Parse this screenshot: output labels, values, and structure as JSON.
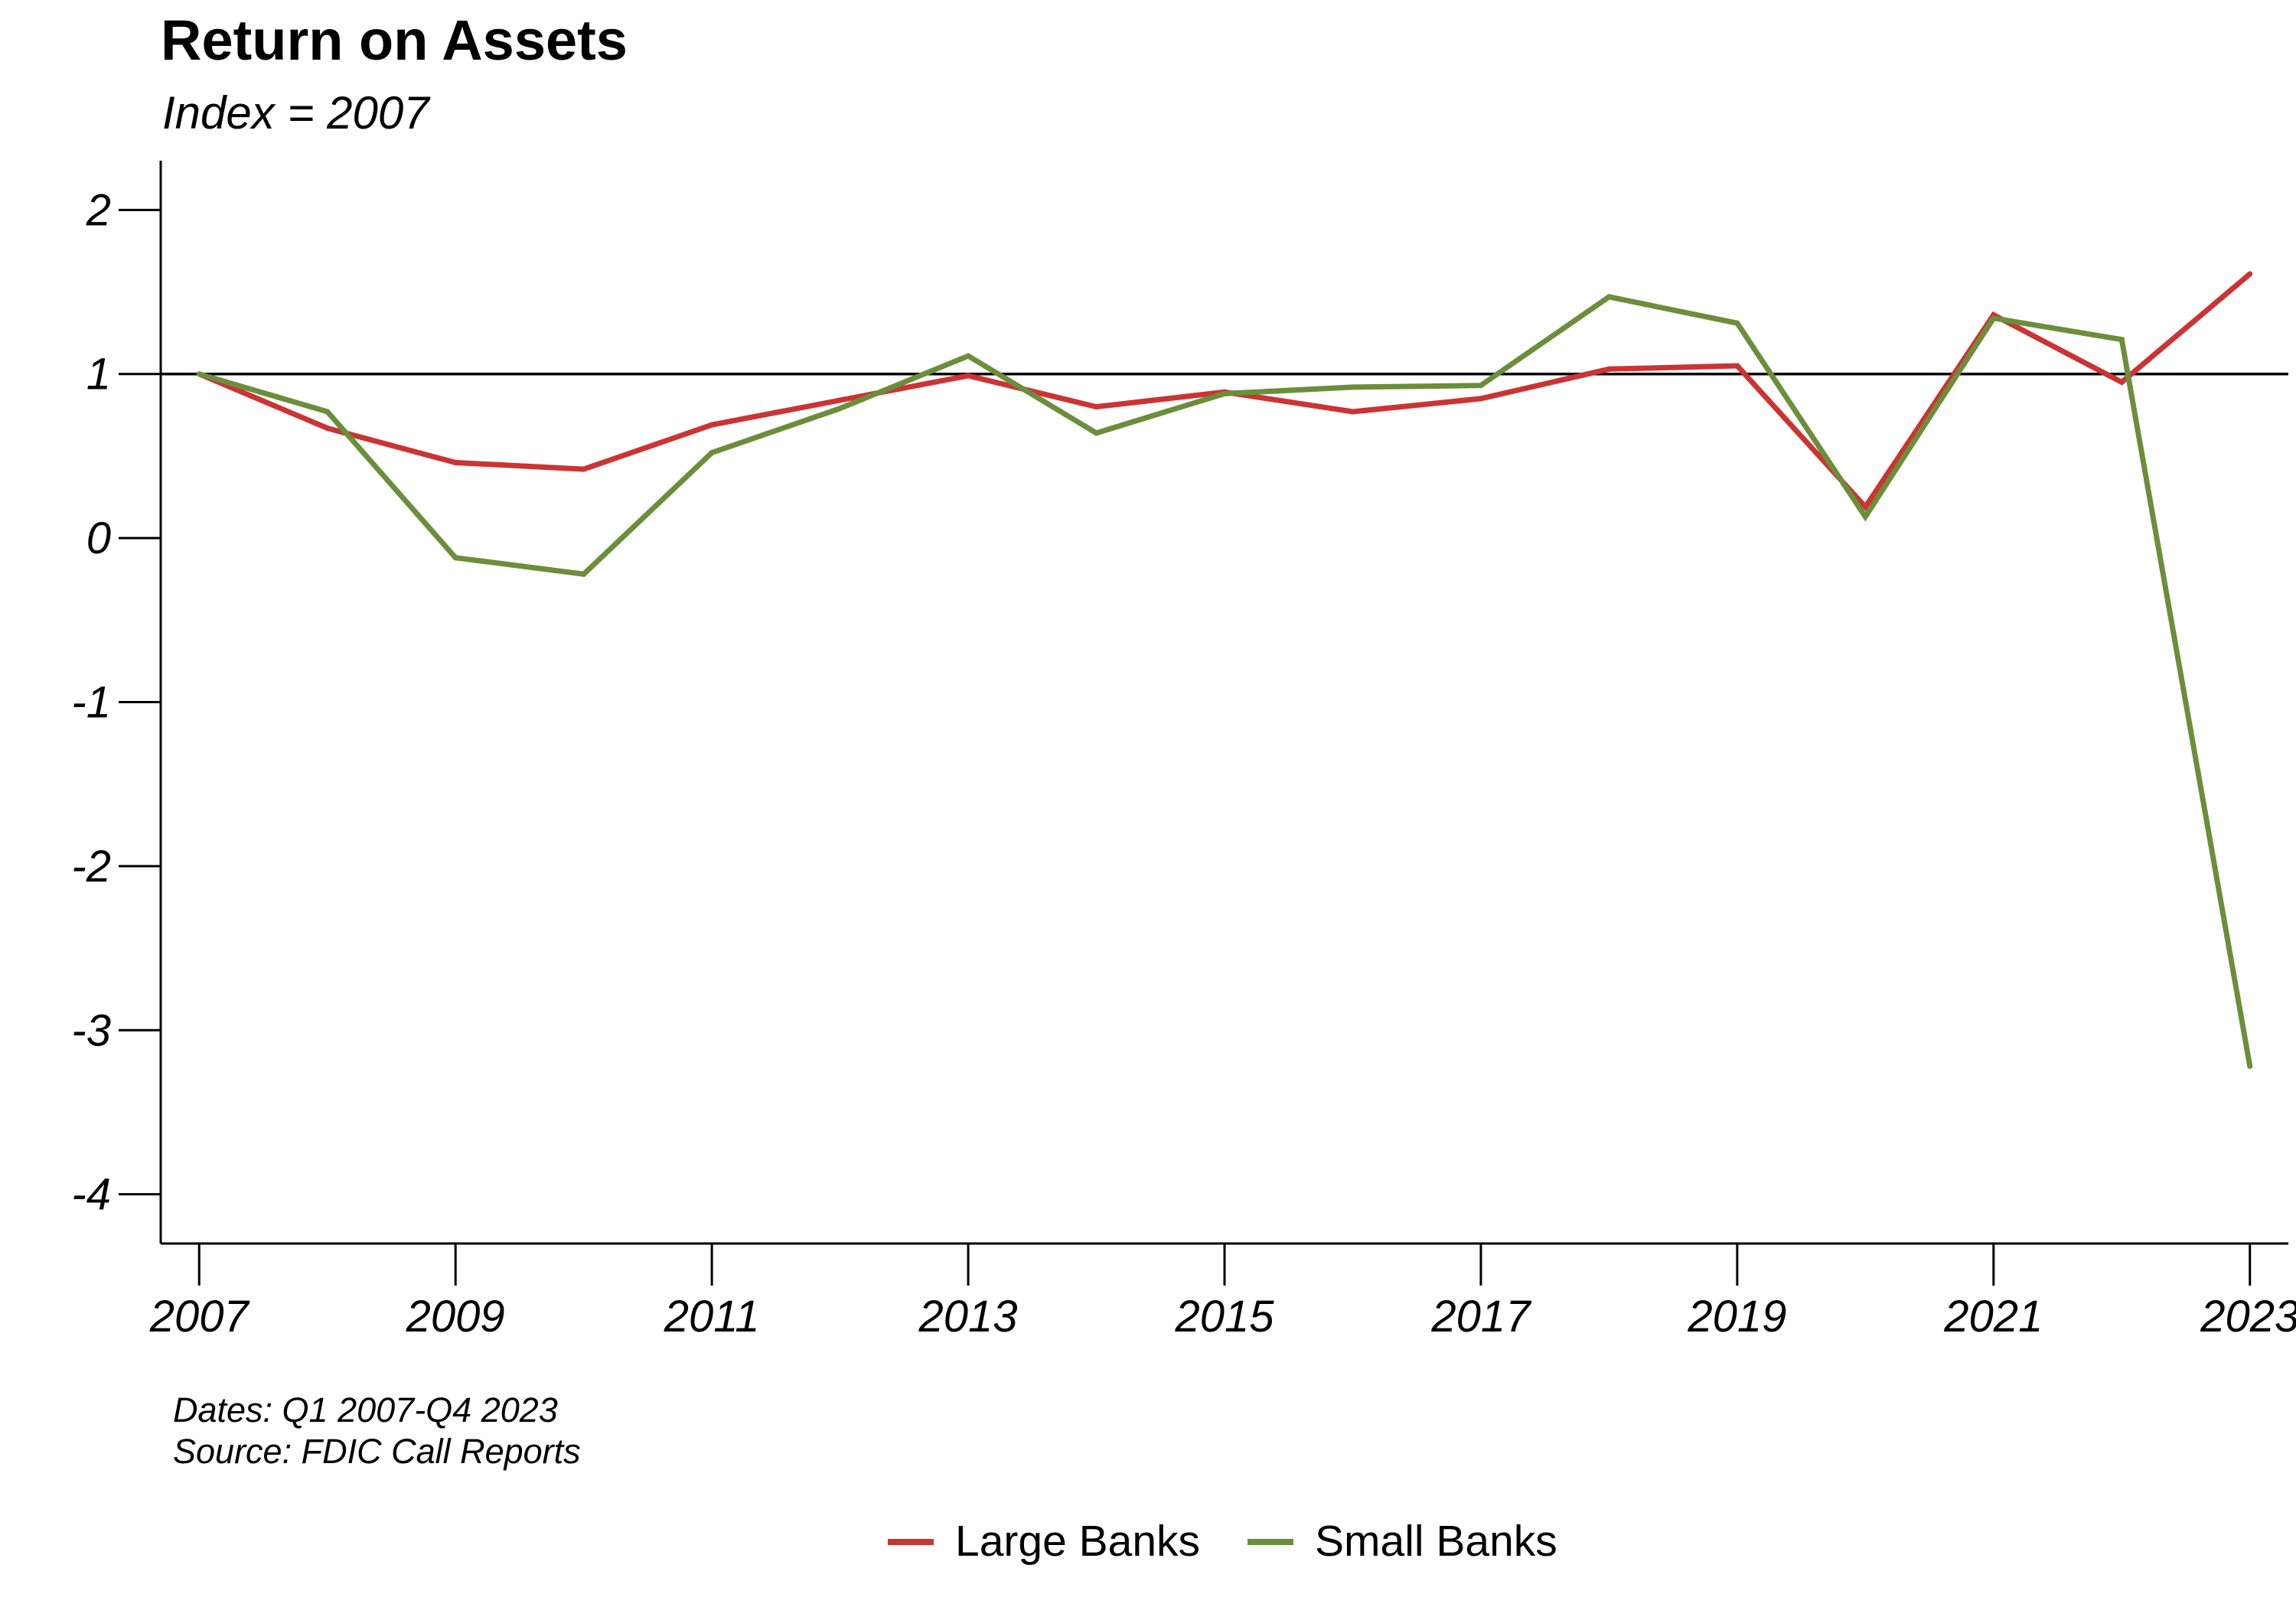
{
  "chart_data": {
    "type": "line",
    "title": "Return on Assets",
    "subtitle": "Index = 2007",
    "xlabel": "",
    "ylabel": "",
    "x": [
      2007,
      2008,
      2009,
      2010,
      2011,
      2012,
      2013,
      2014,
      2015,
      2016,
      2017,
      2018,
      2019,
      2020,
      2021,
      2022,
      2023
    ],
    "xlim": [
      2006.7,
      2023.3
    ],
    "ylim": [
      -4.3,
      2.3
    ],
    "x_ticks": [
      2007,
      2009,
      2011,
      2013,
      2015,
      2017,
      2019,
      2021,
      2023
    ],
    "x_tick_labels": [
      "2007",
      "2009",
      "2011",
      "2013",
      "2015",
      "2017",
      "2019",
      "2021",
      "2023"
    ],
    "y_ticks": [
      -4,
      -3,
      -2,
      -1,
      0,
      1,
      2
    ],
    "y_tick_labels": [
      "-4",
      "-3",
      "-2",
      "-1",
      "0",
      "1",
      "2"
    ],
    "reference_line": 1,
    "grid": false,
    "legend_position": "bottom-center",
    "series": [
      {
        "name": "Large Banks",
        "color": "#CC3333",
        "values": [
          1.0,
          0.67,
          0.46,
          0.42,
          0.69,
          0.84,
          0.99,
          0.8,
          0.89,
          0.77,
          0.85,
          1.03,
          1.05,
          0.19,
          1.36,
          0.95,
          1.61
        ]
      },
      {
        "name": "Small Banks",
        "color": "#6B8E3A",
        "values": [
          1.0,
          0.77,
          -0.12,
          -0.22,
          0.52,
          0.79,
          1.11,
          0.64,
          0.88,
          0.92,
          0.93,
          1.47,
          1.31,
          0.13,
          1.34,
          1.21,
          -3.22
        ]
      }
    ],
    "notes": [
      "Dates: Q1 2007-Q4 2023",
      "Source: FDIC Call Reports"
    ]
  }
}
